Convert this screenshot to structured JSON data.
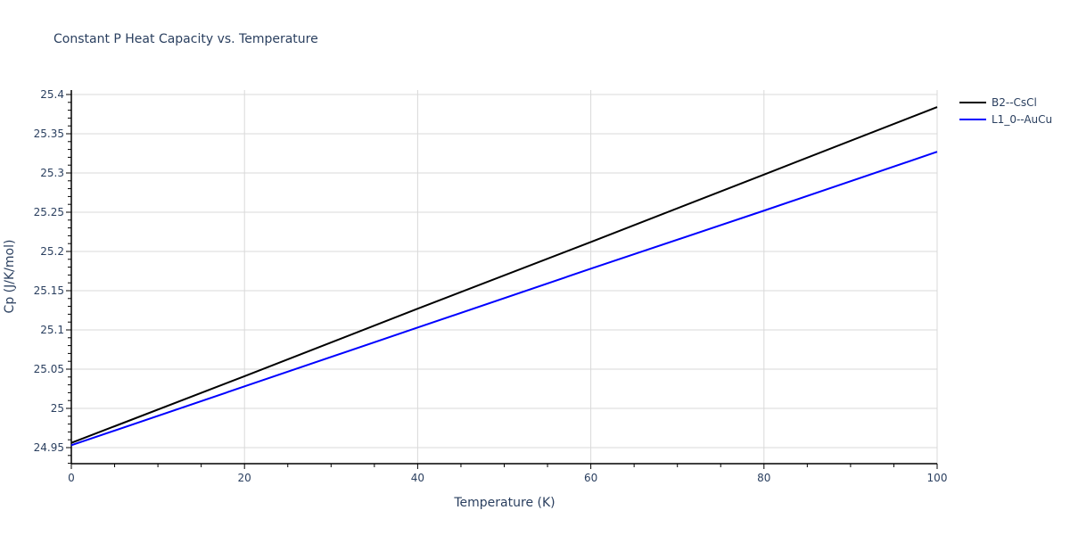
{
  "chart": {
    "title": "Constant P Heat Capacity vs. Temperature"
  },
  "chart_data": {
    "type": "line",
    "title": "Constant P Heat Capacity vs. Temperature",
    "xlabel": "Temperature (K)",
    "ylabel": "Cp (J/K/mol)",
    "xlim": [
      0,
      100
    ],
    "ylim": [
      24.93,
      25.405
    ],
    "x_ticks": [
      0,
      20,
      40,
      60,
      80,
      100
    ],
    "y_ticks": [
      24.95,
      25,
      25.05,
      25.1,
      25.15,
      25.2,
      25.25,
      25.3,
      25.35,
      25.4
    ],
    "y_tick_labels": [
      "24.95",
      "25",
      "25.05",
      "25.1",
      "25.15",
      "25.2",
      "25.25",
      "25.3",
      "25.35",
      "25.4"
    ],
    "grid": true,
    "legend_position": "top-right-outside",
    "x": [
      0,
      20,
      40,
      60,
      80,
      100
    ],
    "series": [
      {
        "name": "B2--CsCl",
        "color": "#000000",
        "values": [
          24.956,
          25.041,
          25.127,
          25.212,
          25.298,
          25.384
        ]
      },
      {
        "name": "L1_0--AuCu",
        "color": "#0000ff",
        "values": [
          24.953,
          25.028,
          25.103,
          25.178,
          25.252,
          25.327
        ]
      }
    ]
  }
}
